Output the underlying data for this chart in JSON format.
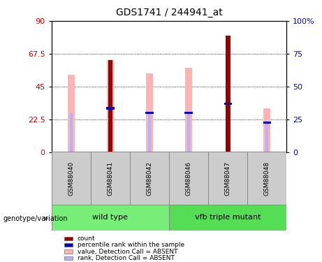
{
  "title": "GDS1741 / 244941_at",
  "samples": [
    "GSM88040",
    "GSM88041",
    "GSM88042",
    "GSM88046",
    "GSM88047",
    "GSM88048"
  ],
  "pink_bar_values": [
    53,
    63,
    54,
    58,
    0,
    30
  ],
  "blue_rank_bar_values": [
    27,
    30,
    27,
    27,
    0,
    20
  ],
  "dark_red_values": [
    0,
    63,
    0,
    0,
    80,
    0
  ],
  "blue_marker_vals": [
    0,
    30,
    27,
    27,
    33,
    20
  ],
  "left_ylim": [
    0,
    90
  ],
  "right_ylim": [
    0,
    100
  ],
  "left_yticks": [
    0,
    22.5,
    45,
    67.5,
    90
  ],
  "right_yticks": [
    0,
    25,
    50,
    75,
    100
  ],
  "left_ytick_labels": [
    "0",
    "22.5",
    "45",
    "67.5",
    "90"
  ],
  "right_ytick_labels": [
    "0",
    "25",
    "50",
    "75",
    "100%"
  ],
  "left_tick_color": "#cc0000",
  "right_tick_color": "#0000cc",
  "grid_values": [
    22.5,
    45,
    67.5
  ],
  "pink_color": "#ffb3b3",
  "blue_rank_color": "#b3b3ff",
  "dark_red_color": "#990000",
  "blue_color": "#0000cc",
  "group_defs": [
    {
      "name": "wild type",
      "start": 0,
      "end": 2,
      "color": "#77ee77"
    },
    {
      "name": "vfb triple mutant",
      "start": 3,
      "end": 5,
      "color": "#55dd55"
    }
  ],
  "sample_box_color": "#cccccc",
  "sample_box_edge": "#888888",
  "legend_items": [
    {
      "color": "#990000",
      "label": "count"
    },
    {
      "color": "#0000cc",
      "label": "percentile rank within the sample"
    },
    {
      "color": "#ffb3b3",
      "label": "value, Detection Call = ABSENT"
    },
    {
      "color": "#b3b3ff",
      "label": "rank, Detection Call = ABSENT"
    }
  ],
  "genotype_label": "genotype/variation",
  "bar_width": 0.08
}
